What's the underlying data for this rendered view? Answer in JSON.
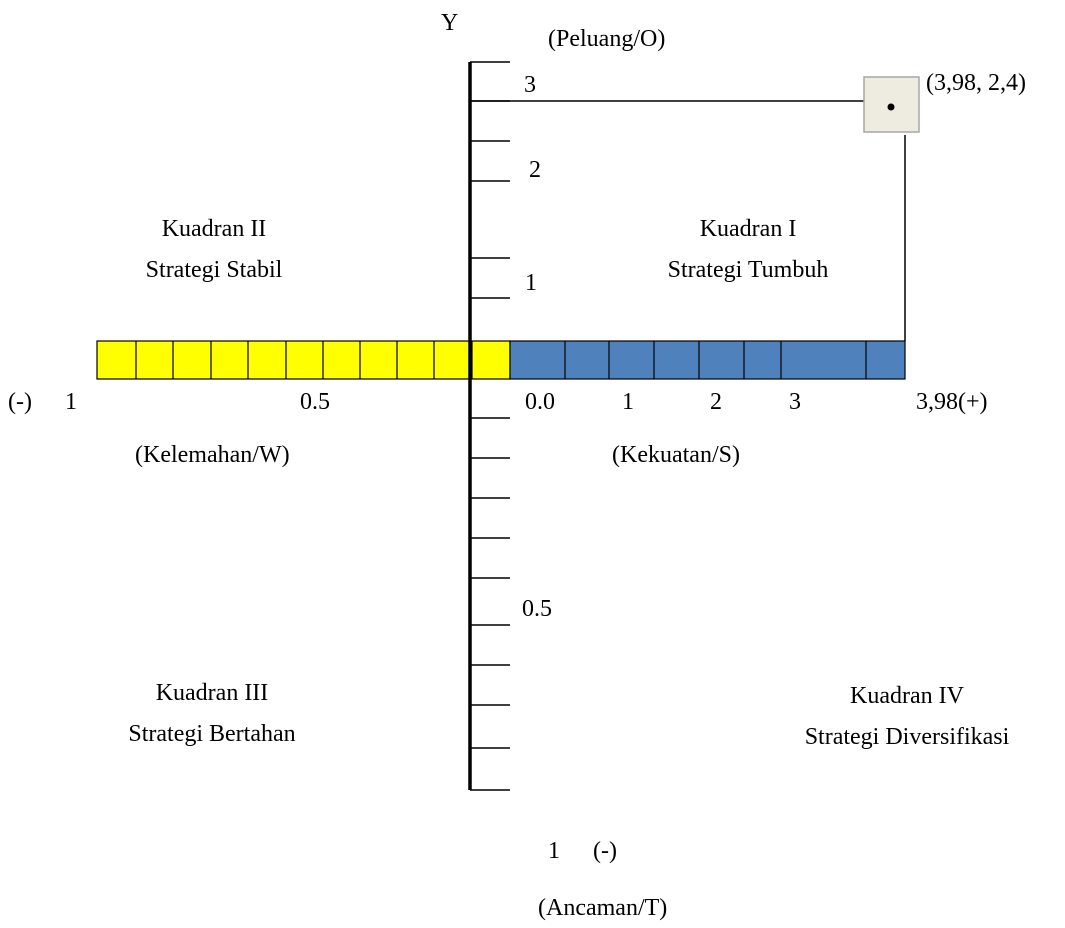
{
  "axis": {
    "y_title": "Y",
    "top_label": "(Peluang/O)",
    "bottom_label": "(Ancaman/T)",
    "bottom_value": "1",
    "bottom_sign": "(-)",
    "upper_ticks": [
      "3",
      "2",
      "1"
    ],
    "lower_tick": "0.5",
    "left_sign": "(-)",
    "left_value": "1",
    "left_half": "0.5",
    "right_ticks": [
      "0.0",
      "1",
      "2",
      "3"
    ],
    "right_end": "3,98(+)",
    "left_label": "(Kelemahan/W)",
    "right_label": "(Kekuatan/S)"
  },
  "quadrants": {
    "q1": {
      "name": "Kuadran I",
      "strategy": "Strategi Tumbuh"
    },
    "q2": {
      "name": "Kuadran II",
      "strategy": "Strategi Stabil"
    },
    "q3": {
      "name": "Kuadran III",
      "strategy": "Strategi Bertahan"
    },
    "q4": {
      "name": "Kuadran IV",
      "strategy": "Strategi Diversifikasi"
    }
  },
  "point": {
    "label": "(3,98, 2,4)",
    "x": 3.98,
    "y": 2.4
  },
  "colors": {
    "weakness_bar": "#ffff00",
    "strength_bar": "#4f81bd",
    "marker_fill": "#eeece1",
    "marker_border": "#a6a6a6"
  }
}
